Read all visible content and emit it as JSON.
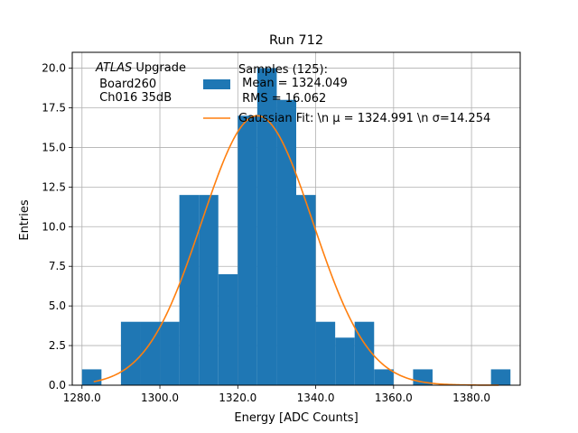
{
  "chart_data": {
    "type": "bar",
    "title": "Run 712",
    "xlabel": "Energy [ADC Counts]",
    "ylabel": "Entries",
    "xlim": [
      1277.5,
      1392.5
    ],
    "ylim": [
      0,
      21
    ],
    "grid": true,
    "x_ticks": [
      1280,
      1300,
      1320,
      1340,
      1360,
      1380
    ],
    "x_tick_labels": [
      "1280.0",
      "1300.0",
      "1320.0",
      "1340.0",
      "1360.0",
      "1380.0"
    ],
    "y_ticks": [
      0,
      2.5,
      5,
      7.5,
      10,
      12.5,
      15,
      17.5,
      20
    ],
    "y_tick_labels": [
      "0.0",
      "2.5",
      "5.0",
      "7.5",
      "10.0",
      "12.5",
      "15.0",
      "17.5",
      "20.0"
    ],
    "histogram": {
      "bin_edges": [
        1280,
        1285,
        1290,
        1295,
        1300,
        1305,
        1310,
        1315,
        1320,
        1325,
        1330,
        1335,
        1340,
        1345,
        1350,
        1355,
        1360,
        1365,
        1370,
        1375,
        1380,
        1385,
        1390
      ],
      "counts": [
        1,
        0,
        4,
        4,
        4,
        12,
        12,
        7,
        17,
        20,
        18,
        12,
        4,
        3,
        4,
        1,
        0,
        1,
        0,
        0,
        0,
        1
      ],
      "color": "#1f77b4"
    },
    "fit": {
      "type": "gaussian",
      "mu": 1324.991,
      "sigma": 14.254,
      "amplitude": 17.0,
      "x_range": [
        1283,
        1387
      ],
      "color": "#ff7f0e"
    },
    "legend": {
      "placement": "top-right",
      "entries": [
        {
          "text": "Samples (125):",
          "lines": [
            "Samples (125):",
            " Mean = 1324.049",
            " RMS = 16.062"
          ],
          "color": "#1f77b4",
          "marker": "patch"
        },
        {
          "text": "Gaussian Fit: \\n μ = 1324.991 \\n σ=14.254",
          "color": "#ff7f0e",
          "marker": "line"
        }
      ]
    },
    "annotation": {
      "lines": [
        "ATLAS Upgrade",
        " Board260",
        " Ch016 35dB"
      ],
      "italic_word": "ATLAS",
      "placement": "top-left"
    }
  }
}
